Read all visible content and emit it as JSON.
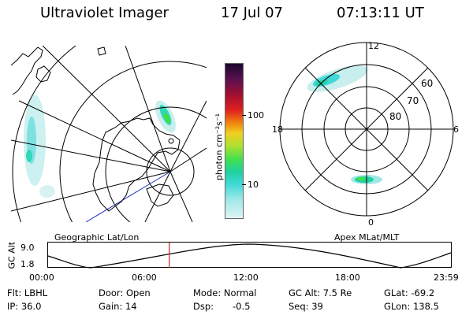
{
  "header": {
    "instrument": "Ultraviolet Imager",
    "date": "17 Jul 07",
    "time": "07:13:11 UT"
  },
  "colorbar": {
    "unit_label": "photon cm⁻²s⁻¹",
    "ticks": [
      "100",
      "10"
    ],
    "colors": [
      "#1a0a2e",
      "#5a1050",
      "#a01030",
      "#e02020",
      "#f08010",
      "#f0d020",
      "#b0e030",
      "#40e050",
      "#20d0a0",
      "#40d8d8",
      "#a0e8e8",
      "#e0f4f4"
    ]
  },
  "geo_panel": {
    "label": "Geographic Lat/Lon"
  },
  "apex_panel": {
    "label": "Apex MLat/MLT",
    "mlt_labels": {
      "top": "12",
      "left": "18",
      "right": "6",
      "bottom": "0"
    },
    "mlat_labels": [
      "60",
      "70",
      "80"
    ]
  },
  "timeline": {
    "ylabel": "GC Alt",
    "ymax": "9.0",
    "ymin": "1.8",
    "xticks": [
      "00:00",
      "06:00",
      "12:00",
      "18:00",
      "23:59"
    ],
    "cursor_hours": 7.22
  },
  "info": {
    "filter": "Flt: LBHL",
    "ip": "IP: 36.0",
    "door": "Door: Open",
    "gain": "Gain: 14",
    "mode": "Mode: Normal",
    "dsp_label": "Dsp:",
    "dsp_value": "-0.5",
    "gc_alt": "GC Alt: 7.5 Re",
    "seq": "Seq: 39",
    "glat": "GLat: -69.2",
    "glon": "GLon: 138.5"
  }
}
